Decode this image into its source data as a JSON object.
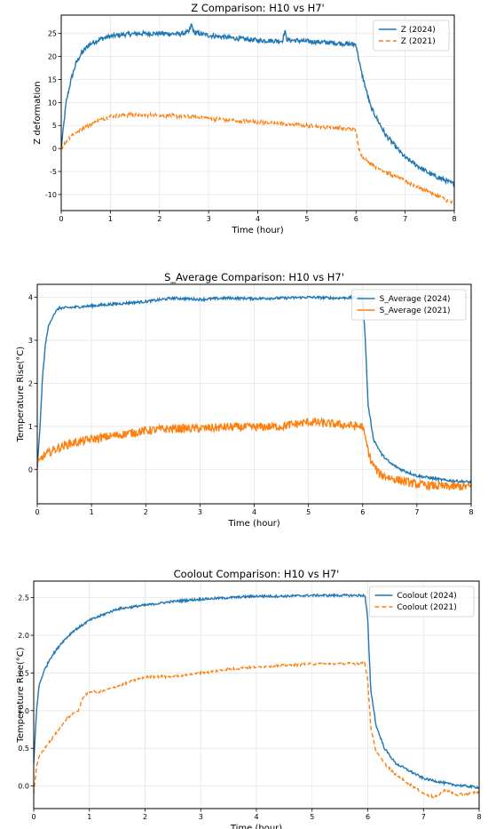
{
  "chart_data": [
    {
      "type": "line",
      "title": "Z Comparison: H10 vs H7'",
      "xlabel": "Time (hour)",
      "ylabel": "Z deformation",
      "xlim": [
        0,
        8
      ],
      "ylim": [
        -13.5,
        29
      ],
      "xticks": [
        0,
        1,
        2,
        3,
        4,
        5,
        6,
        7,
        8
      ],
      "yticks": [
        -10,
        -5,
        0,
        5,
        10,
        15,
        20,
        25
      ],
      "grid": true,
      "legend": "top-right",
      "series": [
        {
          "name": "Z (2024)",
          "color": "#1f77b4",
          "dash": "solid",
          "noise": 0.5,
          "x": [
            0,
            0.1,
            0.2,
            0.3,
            0.4,
            0.5,
            0.6,
            0.8,
            1.0,
            1.3,
            1.6,
            2.0,
            2.4,
            2.6,
            2.65,
            2.7,
            3.0,
            3.5,
            4.0,
            4.5,
            4.55,
            4.6,
            5.0,
            5.5,
            6.0,
            6.02,
            6.1,
            6.3,
            6.6,
            7.0,
            7.5,
            8.0
          ],
          "y": [
            0,
            10,
            15,
            18.5,
            20.5,
            21.8,
            22.8,
            23.8,
            24.4,
            24.8,
            25.0,
            25.0,
            24.9,
            25.3,
            27,
            25.2,
            24.6,
            24.0,
            23.5,
            23.4,
            25.5,
            23.6,
            23.3,
            23.0,
            22.6,
            21.5,
            17,
            9,
            3,
            -2,
            -5.5,
            -7.8
          ]
        },
        {
          "name": "Z (2021)",
          "color": "#ff7f0e",
          "dash": "dashed",
          "noise": 0.4,
          "x": [
            0,
            0.1,
            0.2,
            0.4,
            0.6,
            0.8,
            1.0,
            1.3,
            1.6,
            2.0,
            2.5,
            3.0,
            3.5,
            4.0,
            4.5,
            5.0,
            5.5,
            5.9,
            6.0,
            6.05,
            6.15,
            6.4,
            6.7,
            7.0,
            7.3,
            7.6,
            7.8,
            8.0
          ],
          "y": [
            0,
            1.5,
            2.8,
            4.2,
            5.3,
            6.2,
            7.0,
            7.3,
            7.3,
            7.2,
            7.0,
            6.6,
            6.1,
            5.8,
            5.4,
            5.0,
            4.6,
            4.2,
            4.0,
            0,
            -2,
            -4,
            -5.6,
            -7.1,
            -8.5,
            -10,
            -11,
            -12
          ]
        }
      ]
    },
    {
      "type": "line",
      "title": "S_Average Comparison: H10 vs H7'",
      "xlabel": "Time (hour)",
      "ylabel": "Temperature Rise(°C)",
      "xlim": [
        0,
        8
      ],
      "ylim": [
        -0.8,
        4.3
      ],
      "xticks": [
        0,
        1,
        2,
        3,
        4,
        5,
        6,
        7,
        8
      ],
      "yticks": [
        0,
        1,
        2,
        3,
        4
      ],
      "grid": true,
      "legend": "top-right",
      "series": [
        {
          "name": "S_Average (2024)",
          "color": "#1f77b4",
          "dash": "solid",
          "noise": 0.03,
          "x": [
            0,
            0.05,
            0.1,
            0.15,
            0.2,
            0.3,
            0.4,
            0.5,
            1.0,
            1.5,
            2.0,
            2.5,
            3.0,
            3.5,
            4.0,
            4.5,
            5.0,
            5.5,
            6.0,
            6.05,
            6.1,
            6.2,
            6.35,
            6.5,
            6.7,
            7.0,
            7.5,
            8.0
          ],
          "y": [
            0,
            1.0,
            2.2,
            2.9,
            3.3,
            3.6,
            3.75,
            3.75,
            3.8,
            3.85,
            3.9,
            3.98,
            3.95,
            3.98,
            3.97,
            3.98,
            4.0,
            3.98,
            4.0,
            3.0,
            1.5,
            0.7,
            0.35,
            0.15,
            0.0,
            -0.15,
            -0.25,
            -0.3
          ]
        },
        {
          "name": "S_Average (2021)",
          "color": "#ff7f0e",
          "dash": "solid",
          "noise": 0.1,
          "x": [
            0,
            0.1,
            0.3,
            0.6,
            1.0,
            1.5,
            2.0,
            2.5,
            3.0,
            3.5,
            4.0,
            4.5,
            5.0,
            5.5,
            5.9,
            6.0,
            6.05,
            6.15,
            6.3,
            6.5,
            7.0,
            7.5,
            8.0
          ],
          "y": [
            0.1,
            0.3,
            0.45,
            0.6,
            0.7,
            0.8,
            0.9,
            0.95,
            0.95,
            0.98,
            0.98,
            1.0,
            1.1,
            1.05,
            1.0,
            1.0,
            0.7,
            0.2,
            -0.1,
            -0.2,
            -0.35,
            -0.4,
            -0.4
          ]
        }
      ]
    },
    {
      "type": "line",
      "title": "Coolout Comparison: H10 vs H7'",
      "xlabel": "Time (hour)",
      "ylabel": "Temperature Rise(°C)",
      "xlim": [
        0,
        8
      ],
      "ylim": [
        -0.3,
        2.72
      ],
      "xticks": [
        0,
        1,
        2,
        3,
        4,
        5,
        6,
        7,
        8
      ],
      "yticks": [
        0.0,
        0.5,
        1.0,
        1.5,
        2.0,
        2.5
      ],
      "grid": true,
      "legend": "top-right",
      "series": [
        {
          "name": "Coolout (2024)",
          "color": "#1f77b4",
          "dash": "solid",
          "noise": 0.015,
          "x": [
            0,
            0.05,
            0.1,
            0.2,
            0.3,
            0.5,
            0.7,
            1.0,
            1.5,
            2.0,
            2.5,
            3.0,
            3.5,
            4.0,
            4.5,
            5.0,
            5.5,
            5.95,
            6.0,
            6.05,
            6.15,
            6.3,
            6.5,
            7.0,
            7.5,
            8.0
          ],
          "y": [
            0.3,
            1.0,
            1.35,
            1.55,
            1.7,
            1.9,
            2.05,
            2.2,
            2.35,
            2.4,
            2.45,
            2.48,
            2.5,
            2.52,
            2.52,
            2.53,
            2.53,
            2.53,
            2.2,
            1.3,
            0.8,
            0.5,
            0.3,
            0.1,
            0.02,
            -0.02
          ]
        },
        {
          "name": "Coolout (2021)",
          "color": "#ff7f0e",
          "dash": "dashed",
          "noise": 0.015,
          "x": [
            0,
            0.05,
            0.1,
            0.2,
            0.4,
            0.6,
            0.8,
            0.9,
            1.0,
            1.2,
            1.4,
            1.6,
            1.8,
            2.0,
            2.5,
            3.0,
            3.5,
            4.0,
            4.5,
            5.0,
            5.5,
            5.95,
            6.0,
            6.05,
            6.15,
            6.3,
            6.5,
            7.0,
            7.2,
            7.4,
            7.6,
            7.8,
            8.0
          ],
          "y": [
            -0.1,
            0.25,
            0.4,
            0.5,
            0.7,
            0.9,
            1.0,
            1.2,
            1.25,
            1.25,
            1.3,
            1.35,
            1.4,
            1.45,
            1.45,
            1.5,
            1.55,
            1.58,
            1.6,
            1.62,
            1.62,
            1.63,
            1.4,
            0.8,
            0.45,
            0.3,
            0.15,
            -0.1,
            -0.15,
            -0.05,
            -0.12,
            -0.1,
            -0.08
          ]
        }
      ]
    }
  ]
}
